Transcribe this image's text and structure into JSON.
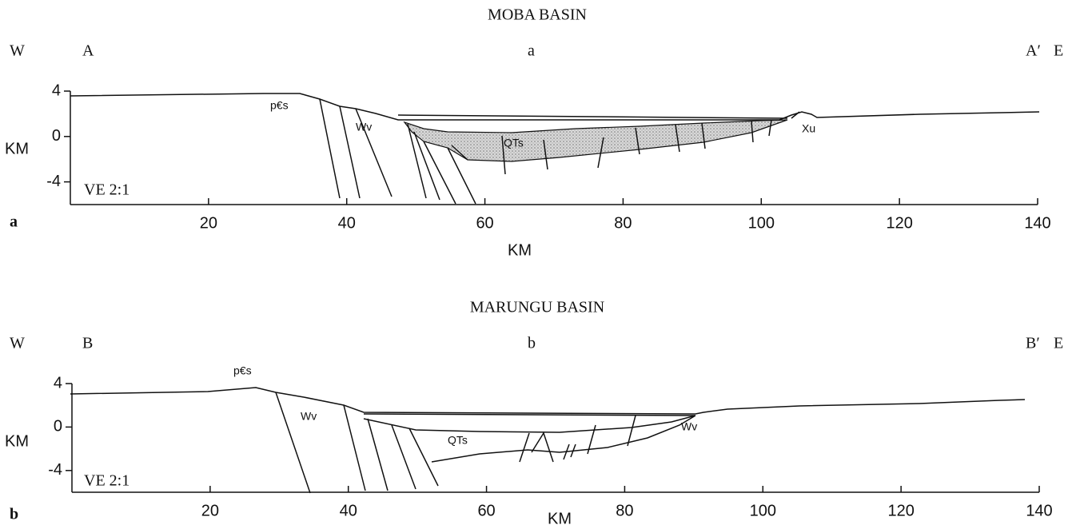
{
  "chart_data": [
    {
      "type": "cross-section",
      "title": "MOBA BASIN",
      "left_label": "W",
      "start_label": "A",
      "section_label": "a",
      "end_label": "A′",
      "right_label": "E",
      "ylabel": "KM",
      "xlabel": "KM",
      "scale_note": "VE 2:1",
      "panel_letter": "a",
      "units": [
        "p€s",
        "Wv",
        "QTs",
        "Xu"
      ],
      "xlim": [
        0,
        140
      ],
      "xticks": [
        20,
        40,
        60,
        80,
        100,
        120,
        140
      ],
      "ylim": [
        -6,
        4
      ],
      "yticks": [
        4,
        0,
        -4
      ]
    },
    {
      "type": "cross-section",
      "title": "MARUNGU BASIN",
      "left_label": "W",
      "start_label": "B",
      "section_label": "b",
      "end_label": "B′",
      "right_label": "E",
      "ylabel": "KM",
      "xlabel": "KM",
      "scale_note": "VE 2:1",
      "panel_letter": "b",
      "units": [
        "p€s",
        "Wv",
        "QTs",
        "Wv"
      ],
      "xlim": [
        0,
        140
      ],
      "xticks": [
        20,
        40,
        60,
        80,
        100,
        120,
        140
      ],
      "ylim": [
        -6,
        4
      ],
      "yticks": [
        4,
        0,
        -4
      ]
    }
  ]
}
